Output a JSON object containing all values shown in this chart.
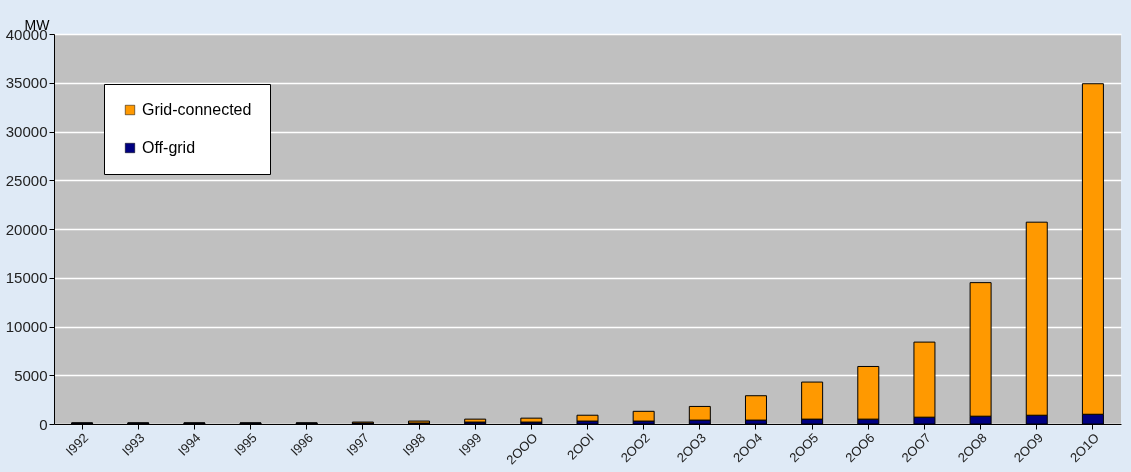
{
  "chart_data": {
    "type": "bar",
    "stacked": true,
    "ylabel": "MW",
    "categories": [
      "I992",
      "I993",
      "I994",
      "I995",
      "I996",
      "I997",
      "I998",
      "I999",
      "2OOO",
      "2OOI",
      "2OO2",
      "2OO3",
      "2OO4",
      "2OO5",
      "2OO6",
      "2OO7",
      "2OO8",
      "2OO9",
      "2O1O"
    ],
    "series": [
      {
        "name": "Off-grid",
        "color": "#000080",
        "values": [
          100,
          100,
          100,
          100,
          100,
          100,
          100,
          200,
          200,
          300,
          300,
          400,
          400,
          500,
          500,
          700,
          800,
          900,
          1000
        ]
      },
      {
        "name": "Grid-connected",
        "color": "#ff9900",
        "values": [
          0,
          0,
          0,
          0,
          0,
          100,
          200,
          300,
          400,
          600,
          1000,
          1400,
          2500,
          3800,
          5400,
          7700,
          13700,
          19800,
          33900
        ]
      }
    ],
    "ylim": [
      0,
      40000
    ],
    "yticks": [
      0,
      5000,
      10000,
      15000,
      20000,
      25000,
      30000,
      35000,
      40000
    ],
    "grid": "y",
    "legend": "top left"
  }
}
